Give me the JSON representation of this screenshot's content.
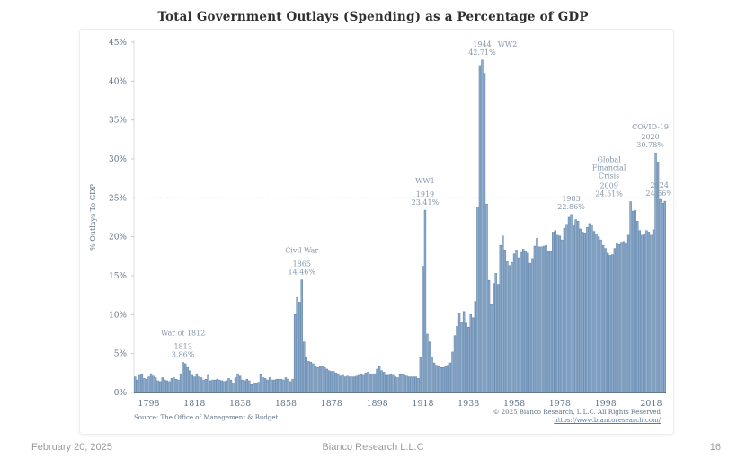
{
  "title": "Total Government Outlays (Spending) as a Percentage of GDP",
  "source_note": "Source: The Office of Management & Budget",
  "copyright": {
    "line1": "© 2025 Bianco Research, L.L.C. All Rights Reserved",
    "link": "https://www.biancoresearch.com/"
  },
  "footer": {
    "date": "February 20, 2025",
    "company": "Bianco Research L.L.C",
    "page_number": "16"
  },
  "chart_data": {
    "type": "bar",
    "title": "Total Government Outlays (Spending) as a Percentage of GDP",
    "xlabel": "",
    "ylabel": "% Outlays To GDP",
    "ylim": [
      0,
      45
    ],
    "grid": false,
    "bar_color": "#93aecd",
    "bar_border_color": "#5f85ac",
    "baseline_color": "#2f4d68",
    "dotted_line_color": "#9aa4ad",
    "tick_color": "#5d7286",
    "annotation_color": "#8496a9",
    "reference_line": {
      "value": 25,
      "style": "dotted"
    },
    "y_ticks": [
      "0%",
      "5%",
      "10%",
      "15%",
      "20%",
      "25%",
      "30%",
      "35%",
      "40%",
      "45%"
    ],
    "x_ticks": [
      1798,
      1818,
      1838,
      1858,
      1878,
      1898,
      1918,
      1938,
      1958,
      1978,
      1998,
      2018
    ],
    "x_start_year": 1792,
    "x_end_year": 2024,
    "values": [
      2.0,
      1.6,
      2.2,
      2.3,
      1.8,
      1.7,
      2.0,
      2.4,
      2.1,
      1.9,
      1.5,
      1.4,
      1.9,
      1.6,
      1.5,
      1.4,
      1.8,
      1.9,
      1.7,
      1.6,
      2.4,
      3.86,
      3.7,
      3.2,
      2.8,
      2.2,
      2.0,
      2.4,
      2.0,
      1.9,
      1.6,
      1.7,
      2.2,
      1.5,
      1.6,
      1.6,
      1.7,
      1.6,
      1.5,
      1.4,
      1.5,
      1.8,
      1.6,
      1.2,
      1.9,
      2.4,
      2.1,
      1.6,
      1.5,
      1.7,
      1.5,
      1.0,
      1.2,
      1.1,
      1.3,
      2.3,
      1.9,
      1.8,
      1.6,
      1.9,
      1.6,
      1.6,
      1.7,
      1.7,
      1.7,
      1.6,
      1.9,
      1.7,
      1.4,
      1.7,
      10.0,
      12.2,
      11.6,
      14.46,
      6.5,
      4.5,
      4.0,
      3.9,
      3.7,
      3.4,
      3.2,
      3.3,
      3.3,
      3.2,
      3.0,
      2.8,
      2.7,
      2.7,
      2.5,
      2.3,
      2.1,
      2.2,
      2.0,
      2.1,
      2.0,
      2.0,
      2.0,
      2.1,
      2.2,
      2.3,
      2.2,
      2.5,
      2.6,
      2.4,
      2.4,
      2.4,
      3.0,
      3.4,
      2.8,
      2.6,
      2.2,
      2.2,
      2.4,
      2.2,
      2.0,
      1.9,
      2.3,
      2.3,
      2.2,
      2.1,
      2.0,
      2.0,
      2.0,
      2.0,
      1.8,
      4.5,
      16.2,
      23.41,
      7.5,
      6.5,
      4.5,
      3.8,
      3.5,
      3.4,
      3.2,
      3.2,
      3.3,
      3.5,
      3.8,
      5.2,
      7.3,
      8.5,
      10.2,
      9.0,
      10.4,
      8.9,
      8.4,
      10.0,
      9.6,
      11.7,
      23.8,
      42.0,
      42.71,
      41.0,
      24.2,
      14.4,
      11.3,
      14.0,
      15.3,
      13.9,
      18.9,
      20.1,
      18.3,
      16.8,
      16.3,
      16.7,
      17.8,
      18.3,
      17.3,
      18.0,
      18.4,
      18.2,
      17.9,
      16.6,
      17.2,
      18.8,
      19.8,
      18.7,
      18.7,
      18.8,
      18.9,
      18.1,
      18.1,
      20.6,
      20.8,
      20.2,
      20.1,
      19.6,
      21.1,
      21.6,
      22.5,
      22.86,
      21.5,
      22.2,
      22.0,
      21.0,
      20.6,
      20.5,
      21.2,
      21.7,
      21.5,
      20.7,
      20.3,
      20.0,
      19.6,
      18.9,
      18.5,
      17.9,
      17.6,
      17.7,
      18.5,
      19.1,
      19.0,
      19.2,
      19.4,
      19.1,
      20.2,
      24.51,
      23.3,
      23.4,
      22.0,
      20.8,
      20.2,
      20.4,
      20.8,
      20.6,
      20.2,
      20.9,
      30.78,
      29.6,
      24.8,
      24.3,
      24.56
    ],
    "annotations": [
      {
        "label_lines": [
          "War of 1812"
        ],
        "year": "1813",
        "value": "3.86%",
        "anchor_year": 1813,
        "dx": 0,
        "gap": 6
      },
      {
        "label_lines": [
          "Civil War"
        ],
        "year": "1865",
        "value": "14.46%",
        "anchor_year": 1865,
        "dx": 0,
        "gap": 6
      },
      {
        "label_lines": [
          "WW1"
        ],
        "year": "1919",
        "value": "23.41%",
        "anchor_year": 1919,
        "dx": 0,
        "gap": 6
      },
      {
        "label_lines": [],
        "year": "1944",
        "value": "42.71%",
        "anchor_year": 1944,
        "dx": 0,
        "gap": 0,
        "side_label": "WW2",
        "side_dx": 28
      },
      {
        "label_lines": [],
        "year": "1983",
        "value": "22.86%",
        "anchor_year": 1983,
        "dx": 0,
        "gap": 0
      },
      {
        "label_lines": [
          "Global",
          "Financial",
          "Crisis"
        ],
        "year": "2009",
        "value": "24.51%",
        "anchor_year": 2009,
        "dx": -24,
        "gap": 2
      },
      {
        "label_lines": [
          "COVID-19"
        ],
        "year": "2020",
        "value": "30.78%",
        "anchor_year": 2020,
        "dx": -6,
        "gap": 2
      },
      {
        "label_lines": [],
        "year": "2024",
        "value": "24.56%",
        "anchor_year": 2024,
        "dx": -6,
        "gap": 0
      }
    ]
  }
}
